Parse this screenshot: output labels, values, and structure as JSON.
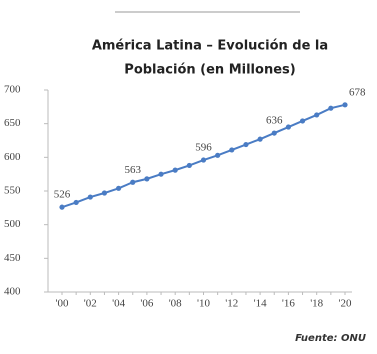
{
  "chart_data": {
    "type": "line",
    "title": "América Latina – Evolución de la Población (en Millones)",
    "title_lines": [
      "América Latina – Evolución de la",
      "Población (en Millones)"
    ],
    "source": "Fuente: ONU",
    "categories": [
      "'00",
      null,
      "'02",
      null,
      "'04",
      null,
      "'06",
      null,
      "'08",
      null,
      "'10",
      null,
      "'12",
      null,
      "'14",
      null,
      "'16",
      null,
      "'18",
      null,
      "'20"
    ],
    "series": [
      {
        "name": "Población",
        "color": "#4a7cc4",
        "values": [
          526,
          533,
          541,
          547,
          554,
          563,
          568,
          575,
          581,
          588,
          596,
          603,
          611,
          619,
          627,
          636,
          645,
          654,
          663,
          673,
          678
        ],
        "value_labels": [
          "526",
          null,
          null,
          null,
          null,
          "563",
          null,
          null,
          null,
          null,
          "596",
          null,
          null,
          null,
          null,
          "636",
          null,
          null,
          null,
          null,
          "678"
        ]
      }
    ],
    "ylim": [
      400,
      700
    ],
    "yticks": [
      400,
      450,
      500,
      550,
      600,
      650,
      700
    ],
    "grid": false
  }
}
